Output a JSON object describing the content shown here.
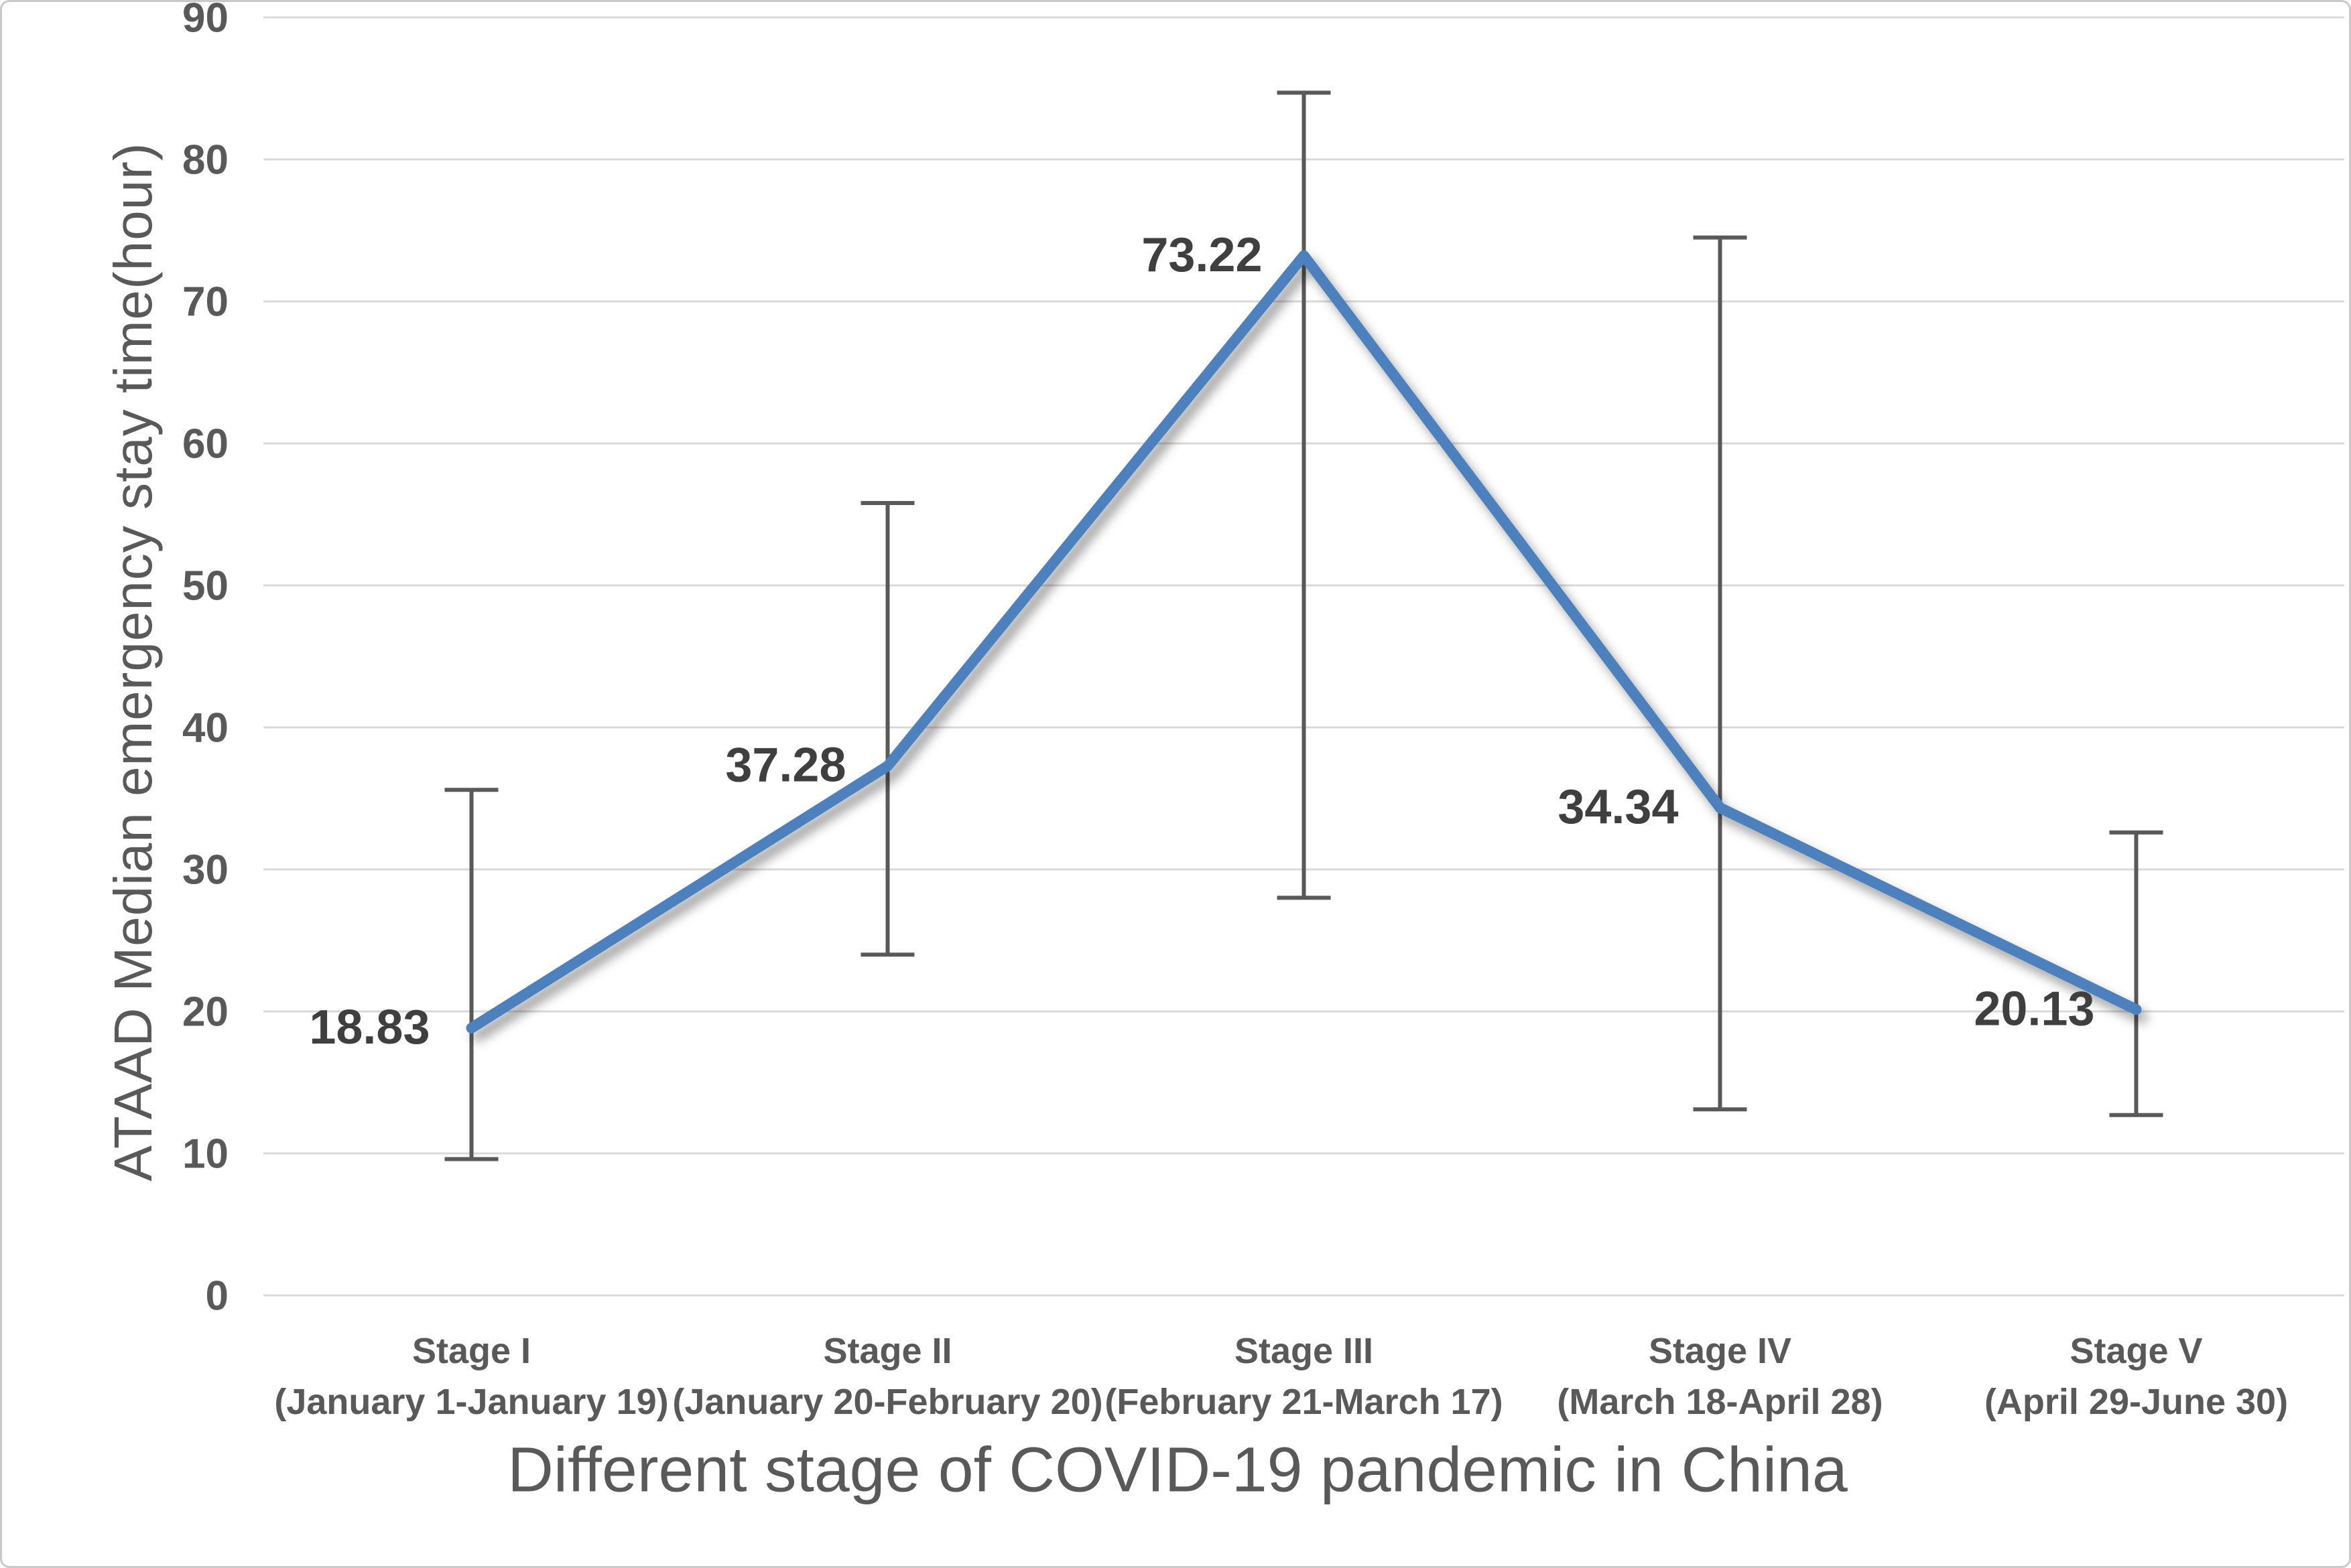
{
  "frame": {
    "background": "#FFFFFF",
    "border_color": "#C9C9C9"
  },
  "chart_data": {
    "type": "line",
    "title": "",
    "xlabel": "Different stage of COVID-19 pandemic in China",
    "ylabel": "ATAAD Median emergency stay time(hour)",
    "ylim": [
      0,
      90
    ],
    "yticks": [
      0,
      10,
      20,
      30,
      40,
      50,
      60,
      70,
      80,
      90
    ],
    "grid": true,
    "legend_position": "none",
    "categories": [
      "Stage I",
      "Stage II",
      "Stage III",
      "Stage IV",
      "Stage V"
    ],
    "category_sublabels": [
      "(January 1-January 19)",
      "(January 20-February 20)",
      "(February 21-March 17)",
      "(March 18-April 28)",
      "(April 29-June 30)"
    ],
    "series": [
      {
        "name": "ATAAD Median emergency stay time",
        "values": [
          18.83,
          37.28,
          73.22,
          34.34,
          20.13
        ],
        "data_labels": [
          "18.83",
          "37.28",
          "73.22",
          "34.34",
          "20.13"
        ],
        "error_low": [
          9.6,
          24.0,
          28.0,
          13.1,
          12.7
        ],
        "error_high": [
          35.6,
          55.8,
          84.7,
          74.5,
          32.6
        ]
      }
    ],
    "colors": {
      "line": "#4E81BD",
      "error_bar": "#595959",
      "gridline": "#D9D9D9",
      "tick_label": "#595959",
      "data_label": "#3F3F3F",
      "axis_title": "#595959",
      "category_label": "#595959"
    }
  }
}
